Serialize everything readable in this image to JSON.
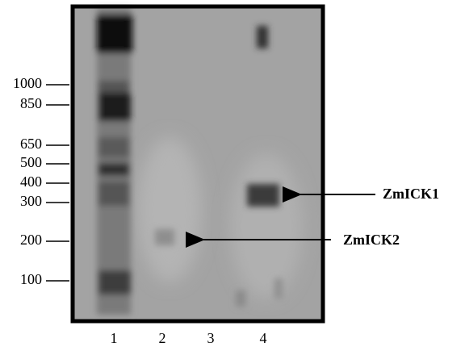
{
  "markers": [
    "1000",
    "850",
    "650",
    "500",
    "400",
    "300",
    "200",
    "100"
  ],
  "lanes": [
    "1",
    "2",
    "3",
    "4"
  ],
  "annotations": [
    "ZmICK1",
    "ZmICK2"
  ]
}
